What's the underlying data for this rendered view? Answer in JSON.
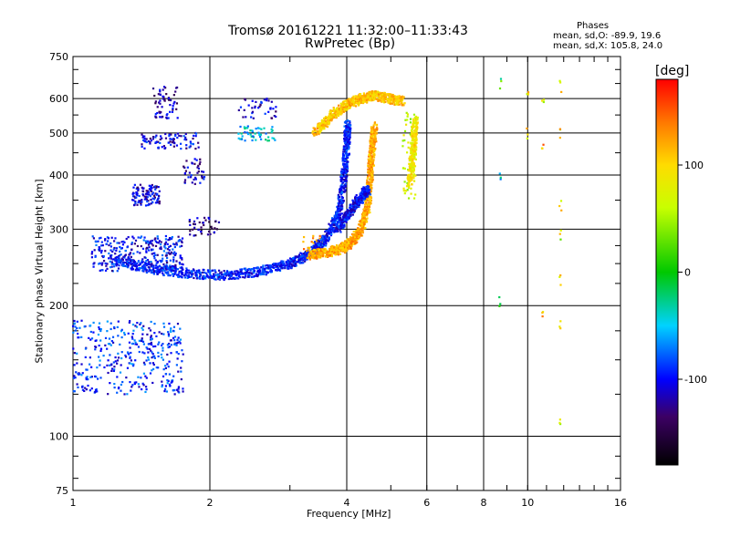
{
  "chart_data": {
    "type": "scatter",
    "title": "Tromsø 20161221 11:32:00–11:33:43",
    "subtitle": "RwPretec (Bp)",
    "xlabel": "Frequency [MHz]",
    "ylabel": "Stationary phase Virtual Height [km]",
    "x_scale": "log",
    "y_scale": "log",
    "xlim": [
      1,
      16
    ],
    "ylim": [
      75,
      750
    ],
    "x_ticks": [
      1,
      2,
      4,
      6,
      8,
      10,
      16
    ],
    "x_tick_labels": [
      "1",
      "2",
      "4",
      "6",
      "8",
      "10",
      "16"
    ],
    "y_ticks": [
      75,
      100,
      200,
      300,
      400,
      500,
      600,
      750
    ],
    "y_tick_labels": [
      "75",
      "100",
      "200",
      "300",
      "400",
      "500",
      "600",
      "750"
    ],
    "grid": true,
    "colorbar": {
      "label": "[deg]",
      "range": [
        -180,
        180
      ],
      "ticks": [
        100,
        0,
        -100
      ],
      "tick_labels": [
        "100",
        "0",
        "-100"
      ]
    },
    "legend": {
      "title": "Phases",
      "line1": "mean, sd,O: -89.9, 19.6",
      "line2": "mean, sd,X: 105.8, 24.0"
    },
    "traces": [
      {
        "f": [
          1.22,
          1.5,
          1.8,
          2.2,
          2.6,
          3.0,
          3.3,
          3.6,
          3.85,
          3.95,
          4.0,
          4.02
        ],
        "h": [
          255,
          243,
          237,
          235,
          240,
          250,
          262,
          285,
          330,
          400,
          470,
          530
        ],
        "phase": -95
      },
      {
        "f": [
          3.3,
          3.6,
          3.9,
          4.1,
          4.3,
          4.45,
          4.5,
          4.55,
          4.6
        ],
        "h": [
          262,
          265,
          270,
          280,
          300,
          340,
          400,
          460,
          520
        ],
        "phase": 120
      },
      {
        "f": [
          3.8,
          4.0,
          4.2,
          4.35,
          4.45
        ],
        "h": [
          300,
          320,
          345,
          360,
          370
        ],
        "phase": -100
      },
      {
        "f": [
          3.4,
          3.7,
          4.0,
          4.3,
          4.6,
          5.0,
          5.3
        ],
        "h": [
          500,
          550,
          580,
          600,
          610,
          600,
          590
        ],
        "phase": 110
      },
      {
        "f": [
          5.5,
          5.6,
          5.65
        ],
        "h": [
          380,
          450,
          540
        ],
        "phase": 90
      }
    ],
    "clusters": [
      {
        "f": [
          1.0,
          1.75
        ],
        "h": [
          125,
          185
        ],
        "n": 380,
        "phase": -90
      },
      {
        "f": [
          1.1,
          1.75
        ],
        "h": [
          240,
          290
        ],
        "n": 320,
        "phase": -100
      },
      {
        "f": [
          1.35,
          1.55
        ],
        "h": [
          340,
          380
        ],
        "n": 110,
        "phase": -110
      },
      {
        "f": [
          1.4,
          1.9
        ],
        "h": [
          460,
          500
        ],
        "n": 90,
        "phase": -105
      },
      {
        "f": [
          1.5,
          1.7
        ],
        "h": [
          540,
          640
        ],
        "n": 60,
        "phase": -120
      },
      {
        "f": [
          1.8,
          2.1
        ],
        "h": [
          290,
          320
        ],
        "n": 40,
        "phase": -130
      },
      {
        "f": [
          1.75,
          1.95
        ],
        "h": [
          380,
          440
        ],
        "n": 40,
        "phase": -115
      },
      {
        "f": [
          2.3,
          2.8
        ],
        "h": [
          480,
          520
        ],
        "n": 50,
        "phase": -50
      },
      {
        "f": [
          2.3,
          2.8
        ],
        "h": [
          540,
          600
        ],
        "n": 40,
        "phase": -110
      },
      {
        "f": [
          3.2,
          3.6
        ],
        "h": [
          260,
          290
        ],
        "n": 40,
        "phase": 120
      },
      {
        "f": [
          5.3,
          5.7
        ],
        "h": [
          350,
          560
        ],
        "n": 50,
        "phase": 60
      }
    ],
    "columns": [
      {
        "f": 8.7,
        "h": [
          205,
          400,
          650
        ],
        "phase": -20
      },
      {
        "f": 10.0,
        "h": [
          500,
          620
        ],
        "phase": 110
      },
      {
        "f": 10.8,
        "h": [
          190,
          470,
          600
        ],
        "phase": 100
      },
      {
        "f": 11.8,
        "h": [
          110,
          180,
          230,
          290,
          340,
          500,
          640
        ],
        "phase": 80
      }
    ]
  }
}
